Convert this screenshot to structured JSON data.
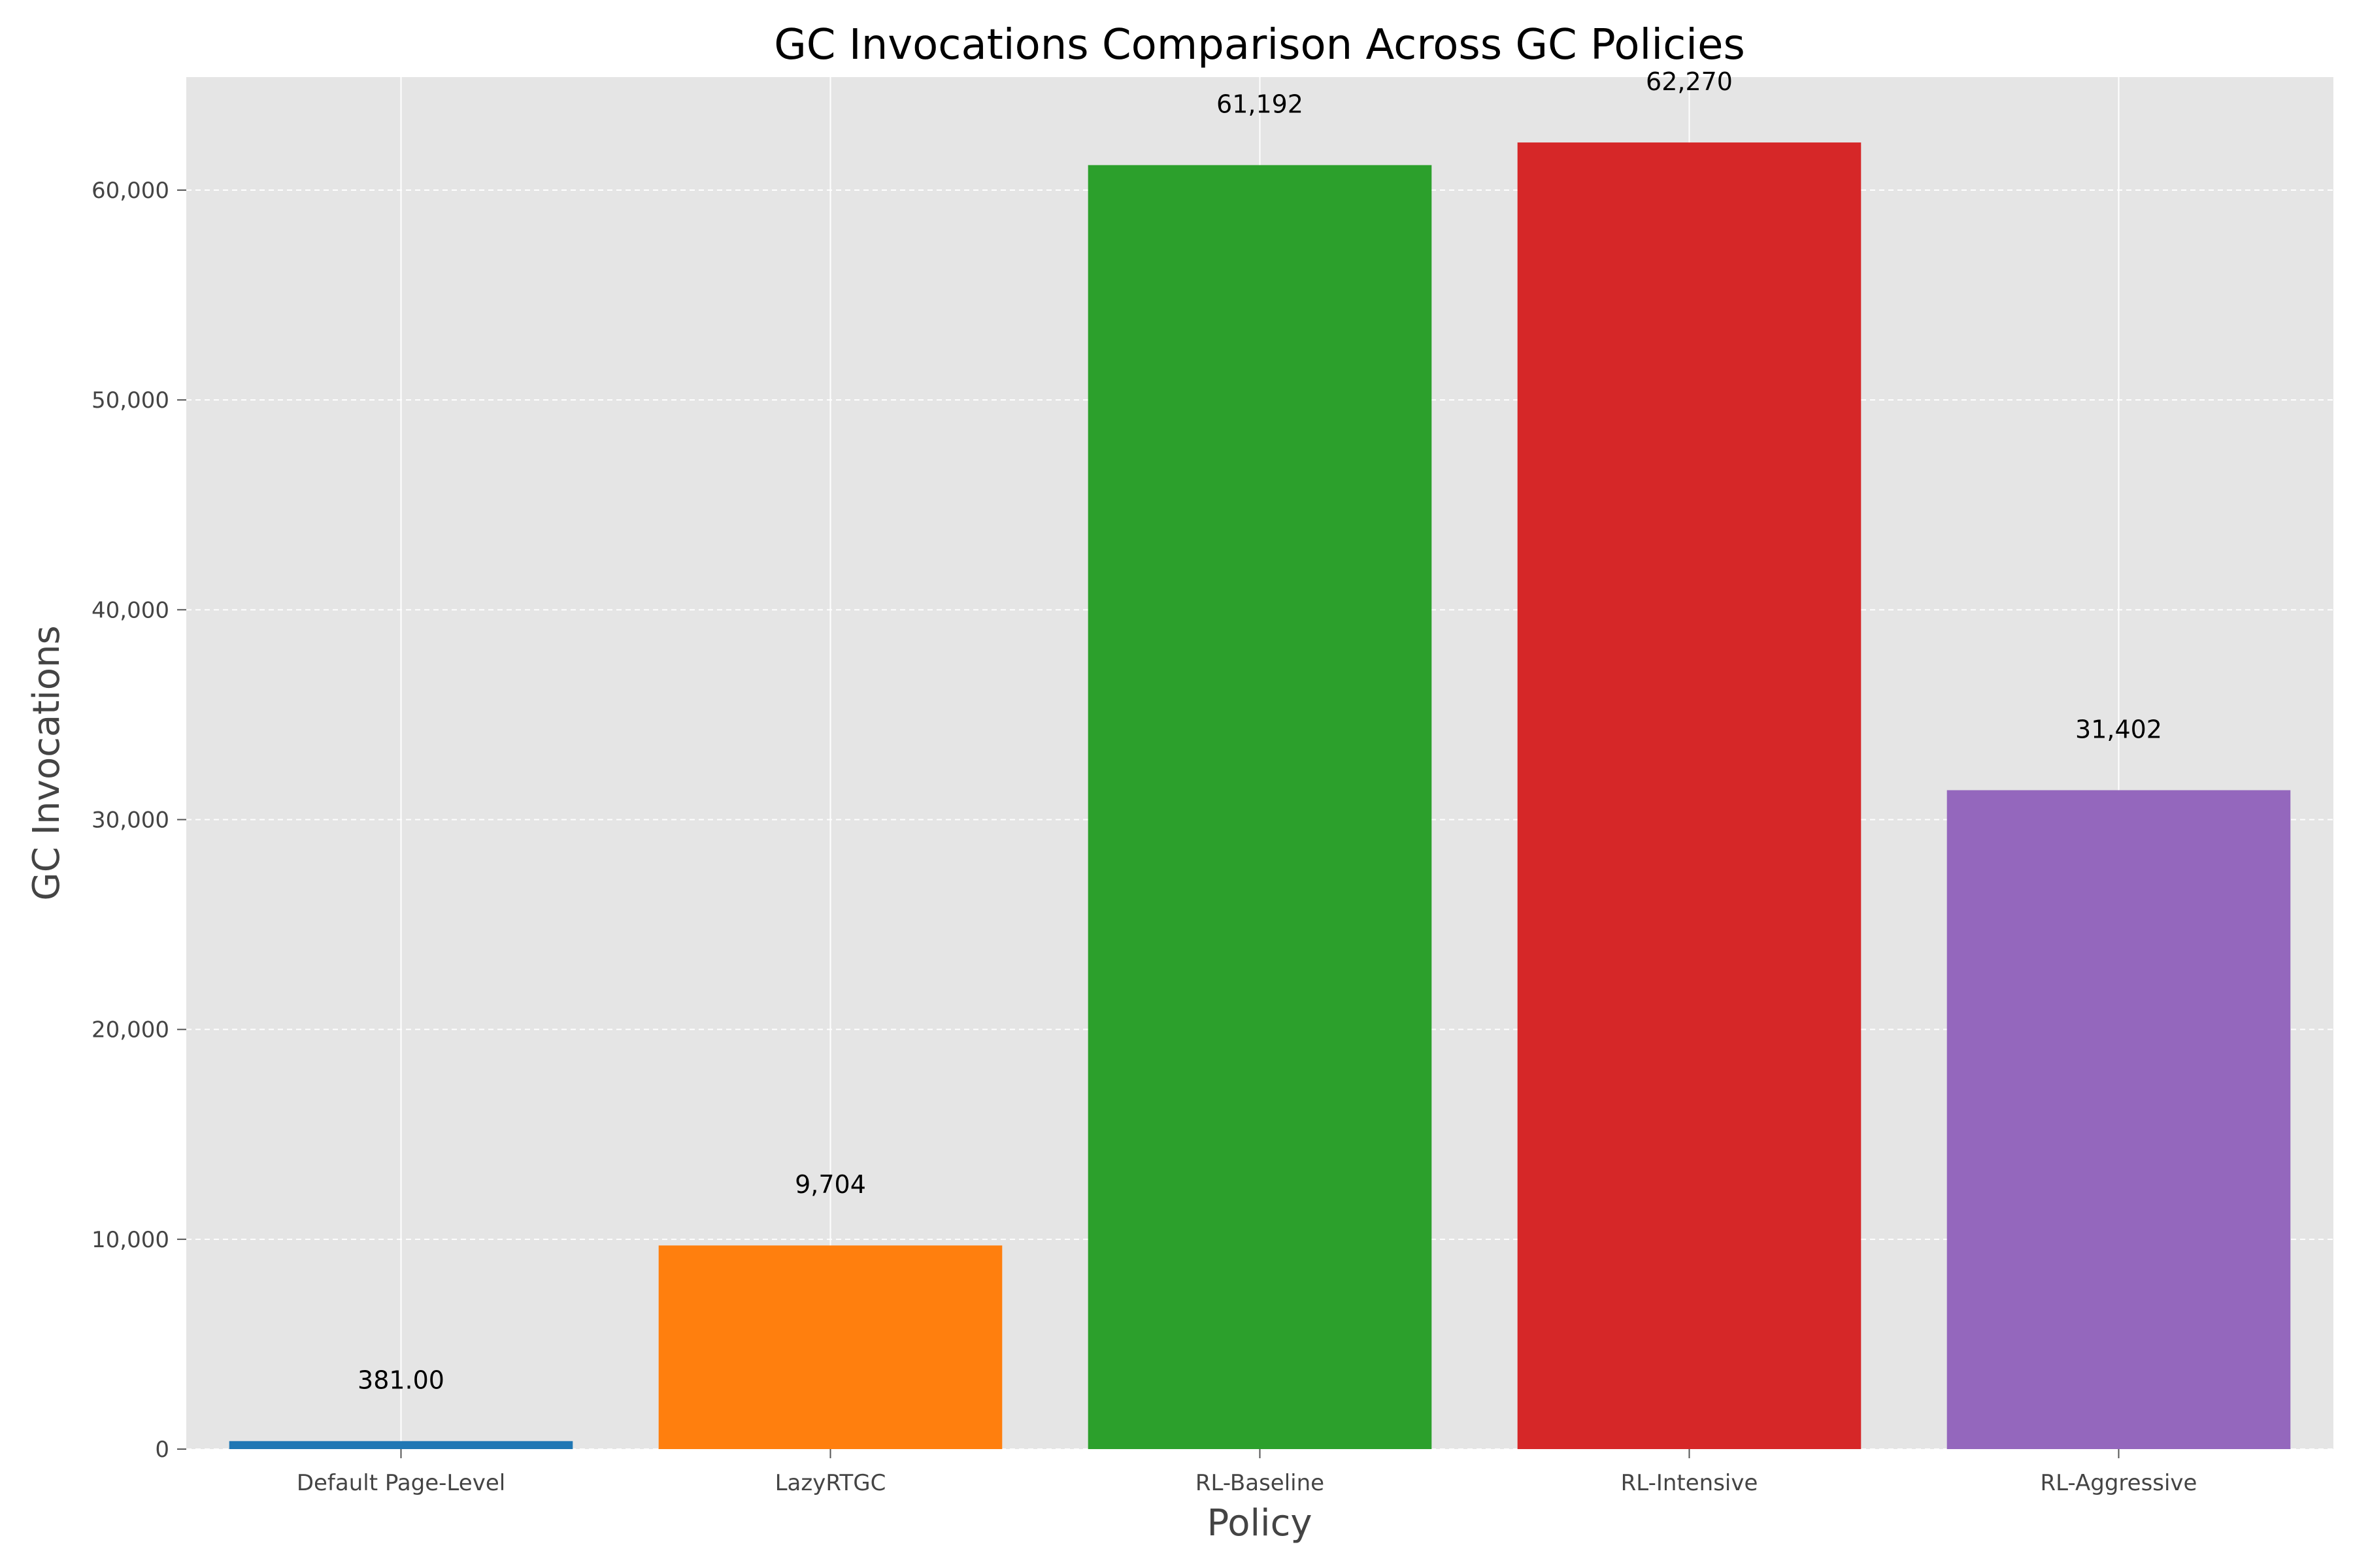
{
  "chart_data": {
    "type": "bar",
    "title": "GC Invocations Comparison Across GC Policies",
    "xlabel": "Policy",
    "ylabel": "GC Invocations",
    "categories": [
      "Default Page-Level",
      "LazyRTGC",
      "RL-Baseline",
      "RL-Intensive",
      "RL-Aggressive"
    ],
    "values": [
      381,
      9704,
      61192,
      62270,
      31402
    ],
    "value_labels": [
      "381.00",
      "9,704",
      "61,192",
      "62,270",
      "31,402"
    ],
    "colors": [
      "#1f77b4",
      "#ff7f0e",
      "#2ca02c",
      "#d62728",
      "#9467bd"
    ],
    "ylim": [
      0,
      65386
    ],
    "yticks": [
      0,
      10000,
      20000,
      30000,
      40000,
      50000,
      60000
    ],
    "ytick_labels": [
      "0",
      "10,000",
      "20,000",
      "30,000",
      "40,000",
      "50,000",
      "60,000"
    ],
    "grid": true,
    "background": "#e5e5e5"
  }
}
